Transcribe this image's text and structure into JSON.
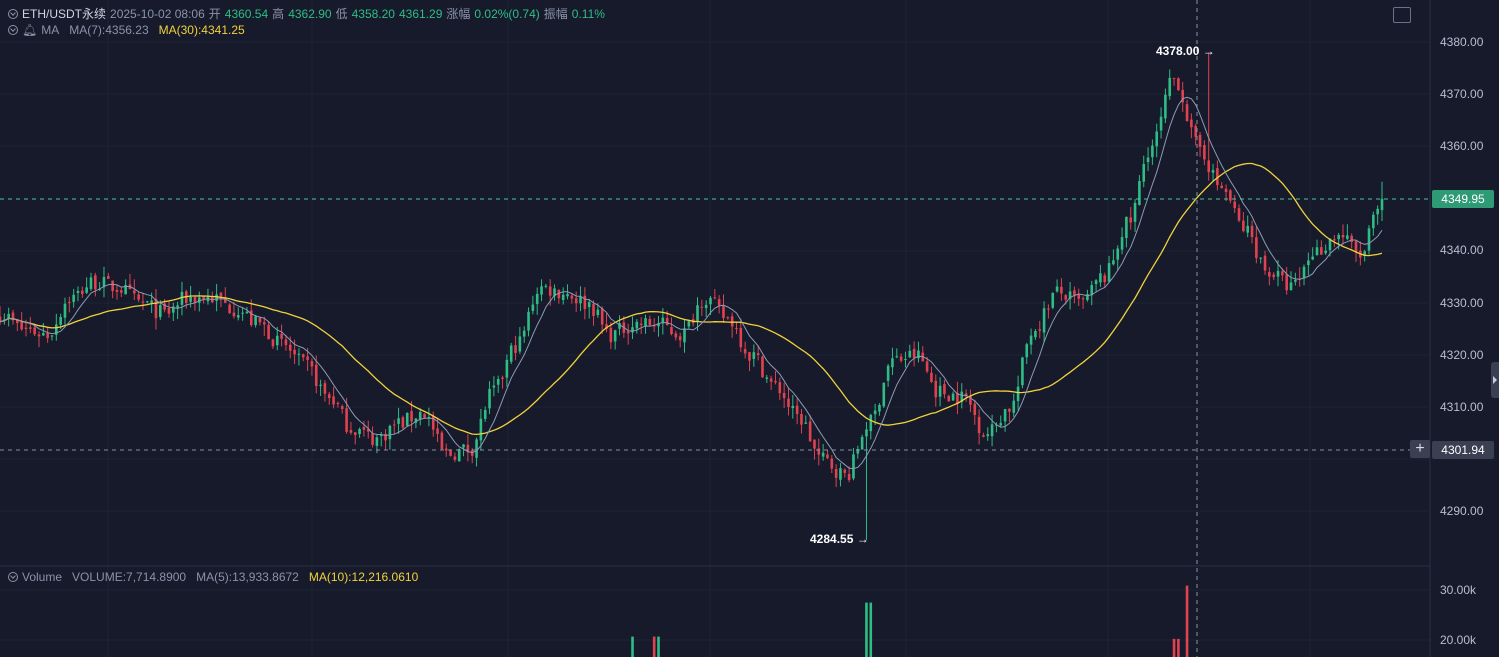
{
  "header": {
    "symbol": "ETH/USDT永续",
    "datetime": "2025-10-02 08:06",
    "open_label": "开",
    "open": "4360.54",
    "high_label": "高",
    "high": "4362.90",
    "low_label": "低",
    "low": "4358.20",
    "close": "4361.29",
    "change_label": "涨幅",
    "change": "0.02%(0.74)",
    "amplitude_label": "振幅",
    "amplitude": "0.11%"
  },
  "ma_legend": {
    "name": "MA",
    "ma7": "MA(7):4356.23",
    "ma30": "MA(30):4341.25"
  },
  "volume_legend": {
    "name": "Volume",
    "volume": "VOLUME:7,714.8900",
    "ma5": "MA(5):13,933.8672",
    "ma10": "MA(10):12,216.0610"
  },
  "colors": {
    "up": "#2ebd85",
    "down": "#e0424f",
    "ma7": "#8c9bb5",
    "ma30": "#f0d23c",
    "background": "#161a2b"
  },
  "price_axis": {
    "ticks": [
      "4380.00",
      "4370.00",
      "4360.00",
      "4350.00",
      "4340.00",
      "4330.00",
      "4320.00",
      "4310.00",
      "4300.00",
      "4290.00"
    ],
    "last_price": "4349.95",
    "crosshair_price": "4301.94"
  },
  "volume_axis": {
    "ticks": [
      "30.00k",
      "20.00k"
    ]
  },
  "extremes": {
    "high": "4378.00",
    "low": "4284.55"
  },
  "icons": {
    "expand": "expand-icon",
    "bell": "bell-icon",
    "eye": "eye-icon",
    "plus": "plus-icon"
  },
  "chart_data": {
    "type": "candlestick",
    "candle_count": 320,
    "ylim": [
      4281,
      4383
    ],
    "vol_ylim": [
      0,
      37000
    ],
    "last_price": 4349.95,
    "crosshair_price": 4301.94,
    "period_high": 4378.0,
    "period_low": 4284.55,
    "close_path": [
      [
        0,
        4328
      ],
      [
        6,
        4325
      ],
      [
        12,
        4324
      ],
      [
        18,
        4331
      ],
      [
        24,
        4334
      ],
      [
        30,
        4333
      ],
      [
        36,
        4330
      ],
      [
        42,
        4328
      ],
      [
        48,
        4331
      ],
      [
        54,
        4331
      ],
      [
        60,
        4329
      ],
      [
        66,
        4326
      ],
      [
        72,
        4322
      ],
      [
        78,
        4318
      ],
      [
        84,
        4312
      ],
      [
        90,
        4306
      ],
      [
        96,
        4304
      ],
      [
        102,
        4307
      ],
      [
        108,
        4309
      ],
      [
        114,
        4301
      ],
      [
        120,
        4302
      ],
      [
        126,
        4313
      ],
      [
        132,
        4322
      ],
      [
        138,
        4333
      ],
      [
        144,
        4332
      ],
      [
        150,
        4330
      ],
      [
        156,
        4324
      ],
      [
        162,
        4326
      ],
      [
        168,
        4326
      ],
      [
        174,
        4324
      ],
      [
        180,
        4331
      ],
      [
        186,
        4327
      ],
      [
        192,
        4320
      ],
      [
        198,
        4314
      ],
      [
        204,
        4308
      ],
      [
        210,
        4300
      ],
      [
        216,
        4297
      ],
      [
        222,
        4307
      ],
      [
        228,
        4319
      ],
      [
        234,
        4320
      ],
      [
        240,
        4313
      ],
      [
        246,
        4312
      ],
      [
        252,
        4305
      ],
      [
        258,
        4310
      ],
      [
        264,
        4325
      ],
      [
        270,
        4332
      ],
      [
        276,
        4330
      ],
      [
        282,
        4335
      ],
      [
        288,
        4345
      ],
      [
        294,
        4360
      ],
      [
        300,
        4373
      ],
      [
        306,
        4360
      ],
      [
        312,
        4352
      ],
      [
        318,
        4344
      ],
      [
        324,
        4336
      ],
      [
        330,
        4333
      ],
      [
        336,
        4340
      ],
      [
        342,
        4343
      ],
      [
        348,
        4339
      ],
      [
        351,
        4346
      ],
      [
        353,
        4349.95
      ]
    ]
  }
}
